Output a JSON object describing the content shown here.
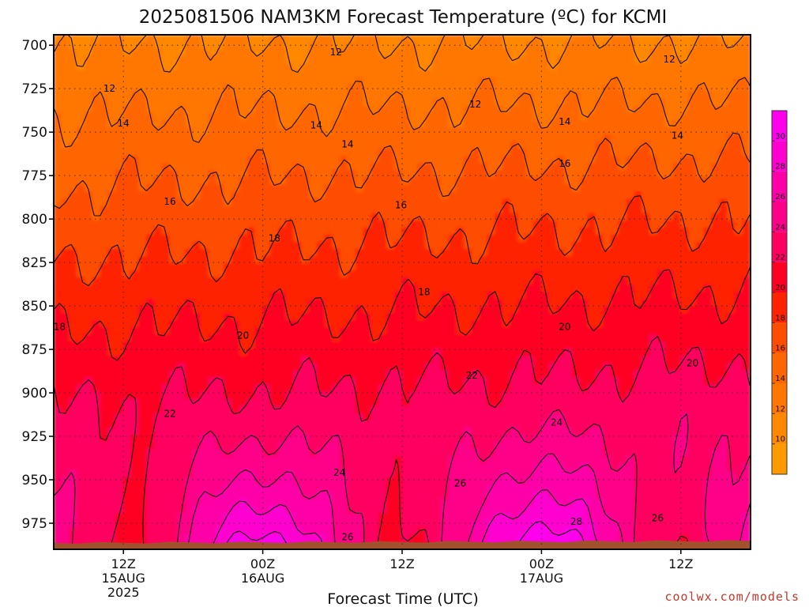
{
  "chart_data": {
    "type": "heatmap",
    "title": "2025081506 NAM3KM Forecast Temperature (ºC) for KCMI",
    "xlabel": "Forecast Time (UTC)",
    "ylabel": "",
    "y_ticks": [
      700,
      725,
      750,
      775,
      800,
      825,
      850,
      875,
      900,
      925,
      950,
      975
    ],
    "ylim": [
      694,
      990
    ],
    "y_scale": "linear-inverted",
    "xlim": [
      0,
      60
    ],
    "x_ticks": [
      {
        "x": 6,
        "lines": [
          "12Z",
          "15AUG",
          "2025"
        ]
      },
      {
        "x": 18,
        "lines": [
          "00Z",
          "16AUG"
        ]
      },
      {
        "x": 30,
        "lines": [
          "12Z"
        ]
      },
      {
        "x": 42,
        "lines": [
          "00Z",
          "17AUG"
        ]
      },
      {
        "x": 54,
        "lines": [
          "12Z"
        ]
      }
    ],
    "grid": true,
    "colorbar": {
      "ticks": [
        10,
        12,
        14,
        16,
        18,
        20,
        22,
        24,
        26,
        28,
        30
      ],
      "range": [
        8,
        32
      ],
      "colors": [
        "#ff9900",
        "#ff8800",
        "#ff7700",
        "#ff6600",
        "#ff4d00",
        "#ff2200",
        "#ff0022",
        "#ff0060",
        "#ff0088",
        "#ff00a8",
        "#ff00d0",
        "#ff00ee"
      ]
    },
    "contour_labels": [
      {
        "x": 0.5,
        "p": 862,
        "v": "18"
      },
      {
        "x": 4.8,
        "p": 725,
        "v": "12"
      },
      {
        "x": 6.0,
        "p": 745,
        "v": "14"
      },
      {
        "x": 10.0,
        "p": 790,
        "v": "16"
      },
      {
        "x": 10.0,
        "p": 912,
        "v": "22"
      },
      {
        "x": 16.3,
        "p": 867,
        "v": "20"
      },
      {
        "x": 19.0,
        "p": 811,
        "v": "18"
      },
      {
        "x": 22.6,
        "p": 746,
        "v": "14"
      },
      {
        "x": 24.3,
        "p": 704,
        "v": "12"
      },
      {
        "x": 24.6,
        "p": 946,
        "v": "24"
      },
      {
        "x": 25.3,
        "p": 757,
        "v": "14"
      },
      {
        "x": 25.3,
        "p": 983,
        "v": "26"
      },
      {
        "x": 29.9,
        "p": 792,
        "v": "16"
      },
      {
        "x": 31.9,
        "p": 842,
        "v": "18"
      },
      {
        "x": 36.0,
        "p": 890,
        "v": "22"
      },
      {
        "x": 35.0,
        "p": 952,
        "v": "26"
      },
      {
        "x": 36.3,
        "p": 734,
        "v": "12"
      },
      {
        "x": 43.3,
        "p": 917,
        "v": "24"
      },
      {
        "x": 44.0,
        "p": 744,
        "v": "14"
      },
      {
        "x": 44.0,
        "p": 862,
        "v": "20"
      },
      {
        "x": 44.0,
        "p": 768,
        "v": "16"
      },
      {
        "x": 45.0,
        "p": 974,
        "v": "28"
      },
      {
        "x": 53.0,
        "p": 708,
        "v": "12"
      },
      {
        "x": 53.7,
        "p": 752,
        "v": "14"
      },
      {
        "x": 52.0,
        "p": 972,
        "v": "26"
      },
      {
        "x": 55.0,
        "p": 883,
        "v": "20"
      }
    ],
    "terrain_pressure": 987,
    "terrain_color": "#a0522d"
  },
  "credit": "coolwx.com/models"
}
